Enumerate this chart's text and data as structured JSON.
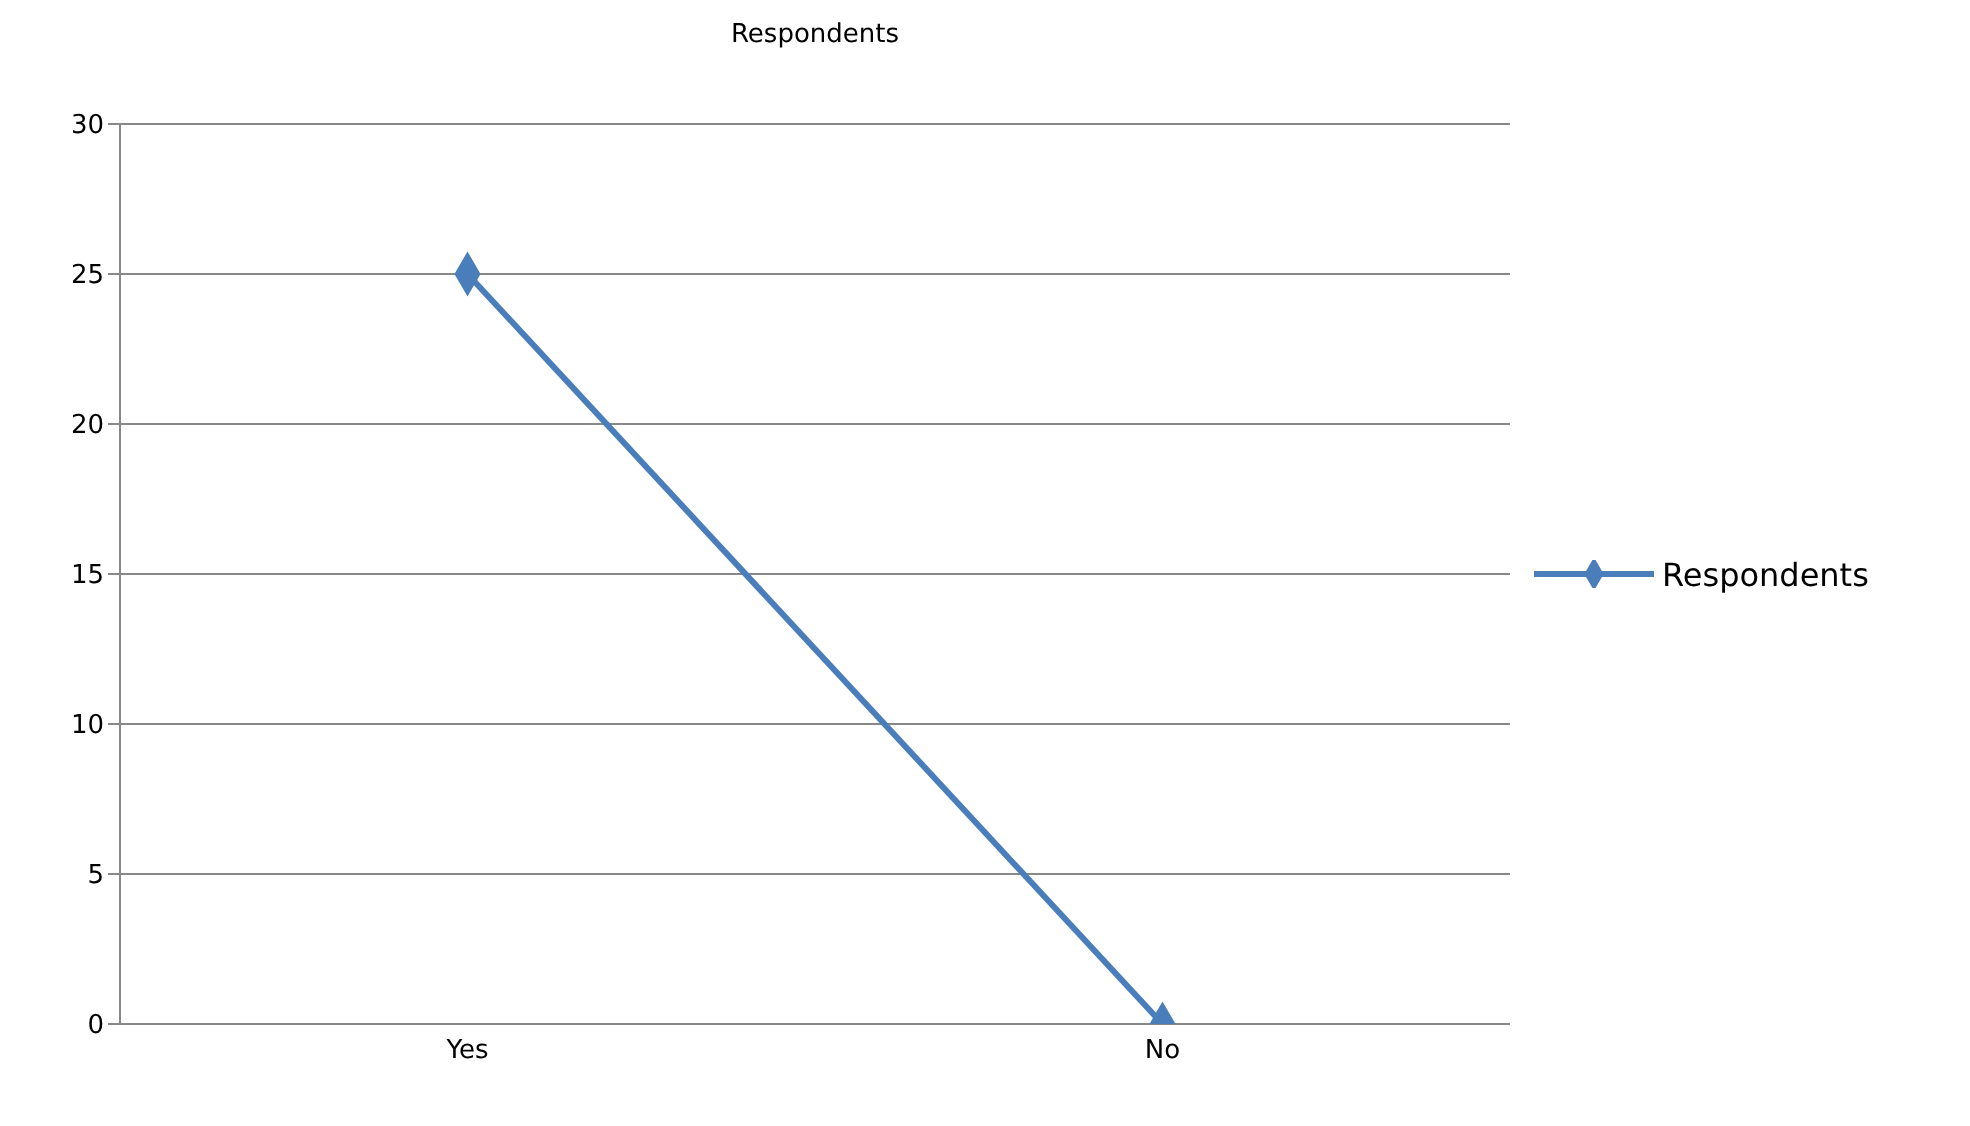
{
  "chart_data": {
    "type": "line",
    "title": "Respondents",
    "categories": [
      "Yes",
      "No"
    ],
    "series": [
      {
        "name": "Respondents",
        "color": "#4a7ebb",
        "values": [
          25,
          0
        ]
      }
    ],
    "ylim": [
      0,
      30
    ],
    "yticks": [
      0,
      5,
      10,
      15,
      20,
      25,
      30
    ],
    "grid": "y",
    "legend": "right",
    "marker": "diamond",
    "line_style": "solid"
  }
}
